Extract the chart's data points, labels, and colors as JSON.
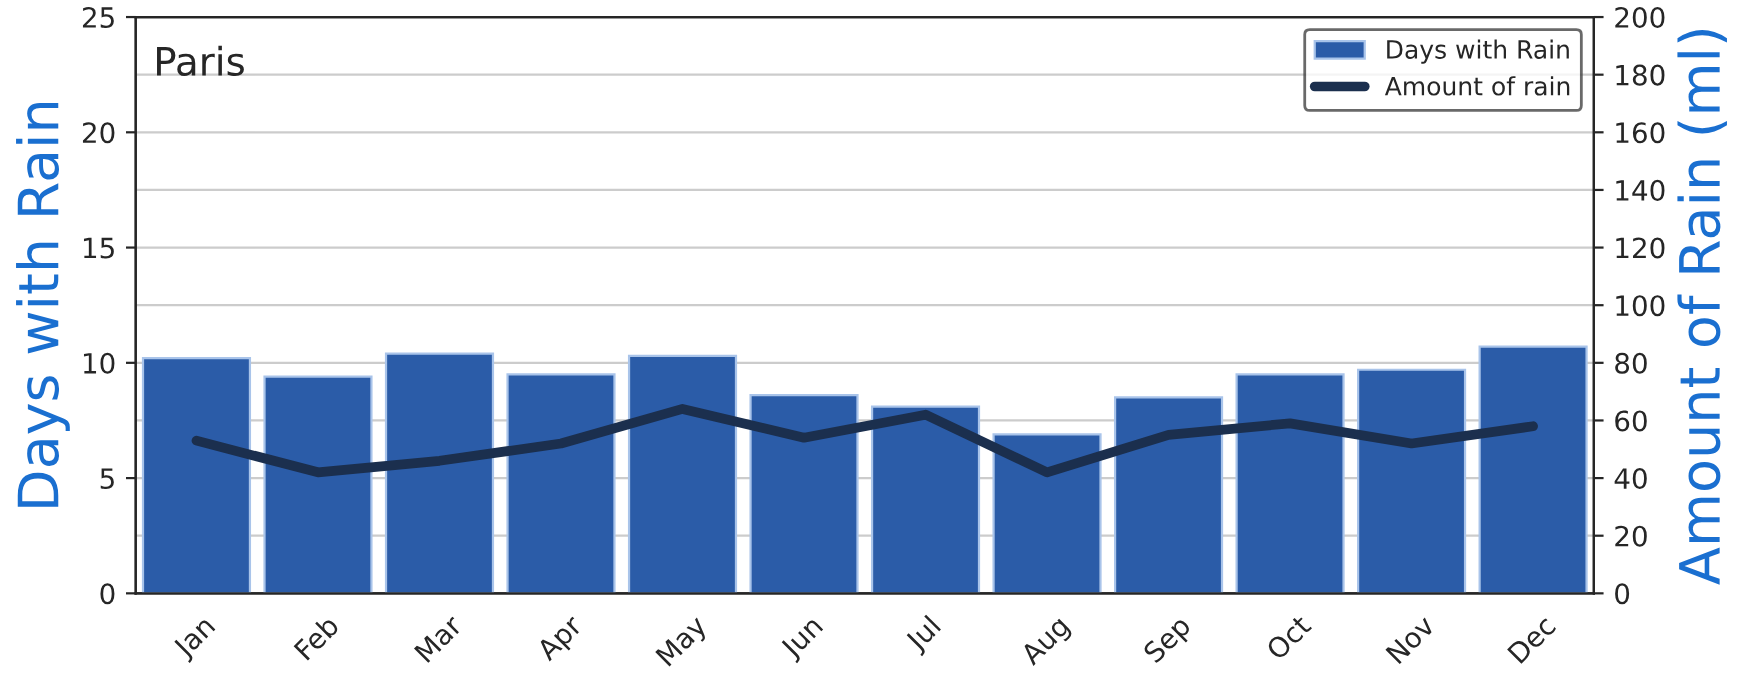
{
  "chart_data": {
    "type": "bar",
    "title": "Paris",
    "categories": [
      "Jan",
      "Feb",
      "Mar",
      "Apr",
      "May",
      "Jun",
      "Jul",
      "Aug",
      "Sep",
      "Oct",
      "Nov",
      "Dec"
    ],
    "series": [
      {
        "name": "Days with Rain",
        "color": "#2b5ca8",
        "values": [
          10.2,
          9.4,
          10.4,
          9.5,
          10.3,
          8.6,
          8.1,
          6.9,
          8.5,
          9.5,
          9.7,
          10.7
        ]
      },
      {
        "name": "Amount of rain",
        "type": "line",
        "axis": "y2",
        "color": "#1b2f4e",
        "values": [
          53,
          42,
          46,
          52,
          64,
          54,
          62,
          42,
          55,
          59,
          52,
          58
        ]
      }
    ],
    "ylabel": "Days with Rain",
    "y2label": "Amount of Rain (ml)",
    "ylim": [
      0,
      25
    ],
    "yticks": [
      0,
      5,
      10,
      15,
      20,
      25
    ],
    "y2lim": [
      0,
      200
    ],
    "y2ticks": [
      0,
      20,
      40,
      60,
      80,
      100,
      120,
      140,
      160,
      180,
      200
    ],
    "grid": "y",
    "legend": "top right",
    "line_style": "solid",
    "marker": "none"
  }
}
